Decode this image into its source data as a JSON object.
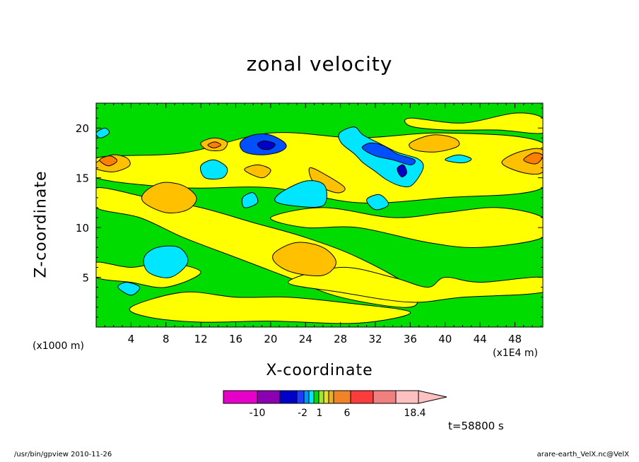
{
  "chart_data": {
    "type": "contour",
    "title": "zonal velocity",
    "xlabel": "X-coordinate",
    "ylabel": "Z-coordinate",
    "x_multiplier": "(x1E4 m)",
    "y_multiplier": "(x1000 m)",
    "xlim": [
      0,
      51.2
    ],
    "ylim": [
      0,
      22.5
    ],
    "x_ticks": [
      4,
      8,
      12,
      16,
      20,
      24,
      28,
      32,
      36,
      40,
      44,
      48
    ],
    "y_ticks": [
      5,
      10,
      15,
      20
    ],
    "colorbar": {
      "labels": [
        "-10",
        "-2",
        "1",
        "6",
        "18.4"
      ],
      "colors": [
        "#e600c8",
        "#8c00b4",
        "#0000c8",
        "#1e3cff",
        "#0096ff",
        "#00e6ff",
        "#00dc00",
        "#a0e632",
        "#e6dc32",
        "#e6af2d",
        "#f08228",
        "#fa3c3c",
        "#f08080",
        "#ffc0c0"
      ]
    },
    "time_label": "t=58800 s",
    "blobs": [
      {
        "name": "yellow-upper",
        "color": "#ffff00",
        "pts": [
          [
            0,
            17
          ],
          [
            10,
            17.5
          ],
          [
            20,
            19.5
          ],
          [
            30,
            19
          ],
          [
            40,
            19.5
          ],
          [
            51.2,
            18.5
          ],
          [
            51.2,
            14
          ],
          [
            40,
            13
          ],
          [
            30,
            12.5
          ],
          [
            20,
            14
          ],
          [
            10,
            14
          ],
          [
            0,
            15
          ]
        ]
      },
      {
        "name": "yellow-mid-left",
        "color": "#ffff00",
        "pts": [
          [
            0,
            12
          ],
          [
            5,
            11
          ],
          [
            10,
            9
          ],
          [
            16,
            7
          ],
          [
            22,
            5
          ],
          [
            28,
            3
          ],
          [
            36,
            2
          ],
          [
            36,
            4
          ],
          [
            30,
            7
          ],
          [
            24,
            9
          ],
          [
            18,
            10.5
          ],
          [
            12,
            12
          ],
          [
            6,
            13
          ],
          [
            0,
            14
          ]
        ]
      },
      {
        "name": "yellow-mid-right",
        "color": "#ffff00",
        "pts": [
          [
            20,
            11
          ],
          [
            26,
            12
          ],
          [
            34,
            11
          ],
          [
            40,
            11.5
          ],
          [
            46,
            12
          ],
          [
            51.2,
            11
          ],
          [
            51.2,
            9
          ],
          [
            44,
            8
          ],
          [
            38,
            8.5
          ],
          [
            30,
            10
          ],
          [
            24,
            10
          ]
        ]
      },
      {
        "name": "yellow-lower-right",
        "color": "#ffff00",
        "pts": [
          [
            22,
            4.5
          ],
          [
            28,
            6
          ],
          [
            34,
            5
          ],
          [
            38,
            4
          ],
          [
            40,
            5
          ],
          [
            44,
            4.5
          ],
          [
            51.2,
            5
          ],
          [
            51.2,
            3.5
          ],
          [
            42,
            3
          ],
          [
            36,
            2.5
          ],
          [
            28,
            3.5
          ]
        ]
      },
      {
        "name": "yellow-bottom",
        "color": "#ffff00",
        "pts": [
          [
            4,
            2
          ],
          [
            10,
            3.5
          ],
          [
            16,
            3
          ],
          [
            22,
            3
          ],
          [
            28,
            2.5
          ],
          [
            36,
            1.5
          ],
          [
            30,
            0.4
          ],
          [
            20,
            0.6
          ],
          [
            12,
            0.5
          ],
          [
            6,
            1
          ]
        ]
      },
      {
        "name": "yellow-lower-left",
        "color": "#ffff00",
        "pts": [
          [
            0,
            5
          ],
          [
            4,
            4.5
          ],
          [
            8,
            4
          ],
          [
            12,
            5.5
          ],
          [
            8,
            6.5
          ],
          [
            4,
            6
          ],
          [
            0,
            6.5
          ]
        ]
      },
      {
        "name": "yellow-top-right-patch",
        "color": "#ffff00",
        "pts": [
          [
            36,
            21
          ],
          [
            42,
            20.5
          ],
          [
            48,
            21.5
          ],
          [
            51.2,
            21
          ],
          [
            51.2,
            19.5
          ],
          [
            46,
            19.8
          ],
          [
            40,
            19.8
          ],
          [
            36,
            20.2
          ]
        ]
      },
      {
        "name": "orange-1",
        "color": "#ffc000",
        "pts": [
          [
            5.5,
            13.5
          ],
          [
            7.5,
            14.5
          ],
          [
            10,
            14.2
          ],
          [
            11.5,
            13
          ],
          [
            10.5,
            11.8
          ],
          [
            8,
            11.5
          ],
          [
            5.5,
            12.5
          ]
        ]
      },
      {
        "name": "orange-2",
        "color": "#ffc000",
        "pts": [
          [
            20.5,
            7.5
          ],
          [
            23,
            8.5
          ],
          [
            26,
            8
          ],
          [
            27.5,
            6.5
          ],
          [
            26,
            5.2
          ],
          [
            22.5,
            5.5
          ],
          [
            20.5,
            6.5
          ]
        ]
      },
      {
        "name": "orange-3",
        "color": "#ffc000",
        "pts": [
          [
            36,
            18.5
          ],
          [
            38.5,
            19.3
          ],
          [
            41,
            19
          ],
          [
            41.5,
            18.2
          ],
          [
            39,
            17.6
          ],
          [
            36.5,
            17.8
          ]
        ]
      },
      {
        "name": "orange-4",
        "color": "#ffc000",
        "pts": [
          [
            0,
            16.5
          ],
          [
            1.8,
            17.3
          ],
          [
            3.5,
            17
          ],
          [
            3.8,
            16.2
          ],
          [
            2,
            15.6
          ],
          [
            0,
            15.9
          ]
        ]
      },
      {
        "name": "orange-5",
        "color": "#ffc000",
        "pts": [
          [
            46.5,
            16.5
          ],
          [
            48.5,
            17.6
          ],
          [
            51.2,
            17.8
          ],
          [
            51.2,
            15.6
          ],
          [
            49,
            15.5
          ]
        ]
      },
      {
        "name": "orange-6",
        "color": "#ffc000",
        "pts": [
          [
            12,
            18.5
          ],
          [
            13.5,
            19
          ],
          [
            15,
            18.6
          ],
          [
            14.5,
            17.8
          ],
          [
            12.8,
            17.8
          ]
        ]
      },
      {
        "name": "orange-7",
        "color": "#ffc000",
        "pts": [
          [
            17,
            15.8
          ],
          [
            18.5,
            16.3
          ],
          [
            20,
            15.8
          ],
          [
            19,
            15
          ]
        ]
      },
      {
        "name": "orange-8",
        "color": "#ffc000",
        "pts": [
          [
            24.5,
            16
          ],
          [
            26.5,
            15.2
          ],
          [
            28.5,
            14
          ],
          [
            27.5,
            13.5
          ],
          [
            25,
            14.5
          ]
        ]
      },
      {
        "name": "orange-dark-7",
        "color": "#ff8000",
        "pts": [
          [
            0.4,
            16.8
          ],
          [
            1.6,
            17.2
          ],
          [
            2.4,
            16.7
          ],
          [
            1.4,
            16.2
          ]
        ]
      },
      {
        "name": "orange-dark-8",
        "color": "#ff8000",
        "pts": [
          [
            12.8,
            18.3
          ],
          [
            13.6,
            18.6
          ],
          [
            14.3,
            18.3
          ],
          [
            13.5,
            18
          ]
        ]
      },
      {
        "name": "orange-dark-9",
        "color": "#ff8000",
        "pts": [
          [
            49,
            16.8
          ],
          [
            50.2,
            17.5
          ],
          [
            51.2,
            17.2
          ],
          [
            50.4,
            16.4
          ]
        ]
      },
      {
        "name": "cyan-1",
        "color": "#00e6ff",
        "pts": [
          [
            5.5,
            7
          ],
          [
            7,
            8
          ],
          [
            9.5,
            8
          ],
          [
            10.5,
            6.5
          ],
          [
            8.5,
            5
          ],
          [
            6,
            5.5
          ]
        ]
      },
      {
        "name": "cyan-2",
        "color": "#00e6ff",
        "pts": [
          [
            21.5,
            13.7
          ],
          [
            24.2,
            14.7
          ],
          [
            26.2,
            14.2
          ],
          [
            26,
            12.2
          ],
          [
            22.5,
            12.2
          ],
          [
            20.5,
            12.7
          ]
        ]
      },
      {
        "name": "cyan-3",
        "color": "#00e6ff",
        "pts": [
          [
            29.6,
            20.1
          ],
          [
            30.6,
            19.3
          ],
          [
            32.6,
            18.4
          ],
          [
            34.4,
            17.6
          ],
          [
            35.5,
            17.3
          ],
          [
            36.9,
            16.9
          ],
          [
            37.5,
            16.3
          ],
          [
            37.2,
            15.4
          ],
          [
            36.1,
            14.2
          ],
          [
            34.8,
            14.2
          ],
          [
            33.3,
            14.8
          ],
          [
            31.9,
            15.7
          ],
          [
            30.6,
            16.5
          ],
          [
            29.6,
            17.4
          ],
          [
            28.1,
            18.5
          ],
          [
            27.9,
            19.5
          ]
        ]
      },
      {
        "name": "cyan-4",
        "color": "#00e6ff",
        "pts": [
          [
            12,
            16.2
          ],
          [
            13.5,
            16.8
          ],
          [
            15,
            16
          ],
          [
            14.5,
            15
          ],
          [
            12.5,
            15
          ]
        ]
      },
      {
        "name": "cyan-5",
        "color": "#00e6ff",
        "pts": [
          [
            16.8,
            13
          ],
          [
            18,
            13.5
          ],
          [
            18.5,
            12.5
          ],
          [
            17,
            12
          ]
        ]
      },
      {
        "name": "cyan-6",
        "color": "#00e6ff",
        "pts": [
          [
            31,
            12.8
          ],
          [
            32.5,
            13.3
          ],
          [
            33.5,
            12.3
          ],
          [
            32,
            11.8
          ]
        ]
      },
      {
        "name": "cyan-7",
        "color": "#00e6ff",
        "pts": [
          [
            2.5,
            4
          ],
          [
            3.5,
            4.5
          ],
          [
            5,
            4
          ],
          [
            4,
            3.2
          ]
        ]
      },
      {
        "name": "cyan-8",
        "color": "#00e6ff",
        "pts": [
          [
            0,
            19.5
          ],
          [
            1,
            20
          ],
          [
            1.5,
            19.5
          ],
          [
            0.5,
            19
          ]
        ]
      },
      {
        "name": "cyan-9",
        "color": "#00e6ff",
        "pts": [
          [
            40,
            16.8
          ],
          [
            41.5,
            17.3
          ],
          [
            43,
            16.9
          ],
          [
            42,
            16.5
          ]
        ]
      },
      {
        "name": "blue-dark-1",
        "color": "#0050ff",
        "pts": [
          [
            16.5,
            18.5
          ],
          [
            17.6,
            19.2
          ],
          [
            19.4,
            19.4
          ],
          [
            21,
            18.9
          ],
          [
            21.8,
            18.2
          ],
          [
            21,
            17.6
          ],
          [
            19,
            17.3
          ],
          [
            17,
            17.6
          ]
        ]
      },
      {
        "name": "blue-dark-2",
        "color": "#0050ff",
        "pts": [
          [
            30.5,
            18
          ],
          [
            31.5,
            18.5
          ],
          [
            33,
            18.2
          ],
          [
            34.5,
            17.4
          ],
          [
            36.5,
            16.8
          ],
          [
            36,
            16.3
          ],
          [
            34,
            16.8
          ],
          [
            32,
            17.2
          ]
        ]
      },
      {
        "name": "navy-1",
        "color": "#0000c8",
        "pts": [
          [
            18.5,
            18.4
          ],
          [
            19.3,
            18.7
          ],
          [
            20.5,
            18.4
          ],
          [
            20,
            17.9
          ],
          [
            19,
            17.9
          ]
        ]
      },
      {
        "name": "navy-2",
        "color": "#0000c8",
        "pts": [
          [
            34.5,
            15.9
          ],
          [
            35.2,
            16.3
          ],
          [
            35.6,
            15.5
          ],
          [
            35,
            15.1
          ]
        ]
      }
    ]
  },
  "footer": {
    "left": "/usr/bin/gpview   2010-11-26",
    "right": "arare-earth_VelX.nc@VelX"
  }
}
